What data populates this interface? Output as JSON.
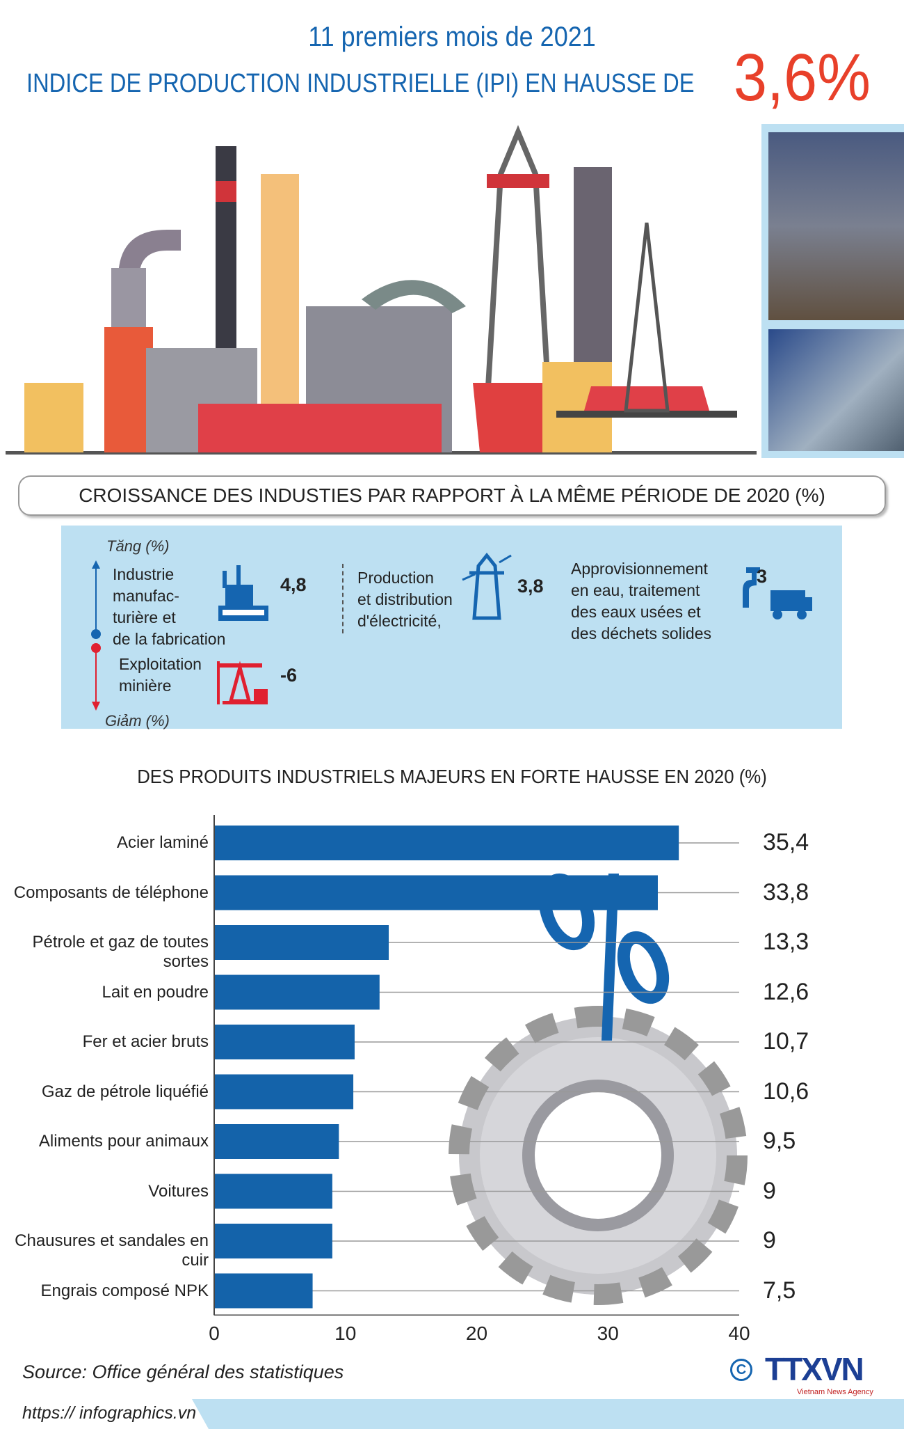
{
  "header": {
    "subtitle": "11 premiers mois de 2021",
    "title": "INDICE DE PRODUCTION INDUSTRIELLE (IPI) EN HAUSSE DE",
    "highlight": "3,6%"
  },
  "banner": "CROISSANCE DES INDUSTIES PAR RAPPORT À LA MÊME PÉRIODE DE 2020 (%)",
  "growth": {
    "up_label": "Tăng (%)",
    "down_label": "Giảm (%)",
    "items": [
      {
        "lines": [
          "Industrie",
          "manufac-",
          "turière et",
          "de la fabrication"
        ],
        "value": "4,8",
        "icon": "factory-icon"
      },
      {
        "lines": [
          "Exploitation",
          "minière"
        ],
        "value": "-6",
        "icon": "oil-pump-icon"
      },
      {
        "lines": [
          "Production",
          "et distribution",
          "d'électricité,"
        ],
        "value": "3,8",
        "icon": "power-tower-icon"
      },
      {
        "lines": [
          "Approvisionnement",
          "en eau, traitement",
          "des eaux usées et",
          "des déchets solides"
        ],
        "value": "3",
        "icon": "water-truck-icon"
      }
    ],
    "colors": {
      "up": "#1565b0",
      "down": "#e02030",
      "panel": "#bde0f2"
    }
  },
  "chart_data": {
    "type": "bar",
    "orientation": "horizontal",
    "title": "DES PRODUITS INDUSTRIELS MAJEURS EN FORTE HAUSSE EN 2020 (%)",
    "categories": [
      "Acier laminé",
      "Composants de téléphone",
      "Pétrole et gaz de toutes sortes",
      "Lait en poudre",
      "Fer et acier bruts",
      "Gaz de pétrole liquéfié",
      "Aliments pour animaux",
      "Voitures",
      "Chausures et sandales en cuir",
      "Engrais composé NPK"
    ],
    "values": [
      35.4,
      33.8,
      13.3,
      12.6,
      10.7,
      10.6,
      9.5,
      9,
      9,
      7.5
    ],
    "value_labels": [
      "35,4",
      "33,8",
      "13,3",
      "12,6",
      "10,7",
      "10,6",
      "9,5",
      "9",
      "9",
      "7,5"
    ],
    "xlim": [
      0,
      40
    ],
    "xticks": [
      "0",
      "10",
      "20",
      "30",
      "40"
    ],
    "bar_color": "#1463aa",
    "grid": "horizontal lines per row"
  },
  "footer": {
    "source": "Source: Office général des statistiques",
    "url": "https:// infographics.vn",
    "logo": "TTXVN",
    "logo_sub": "Vietnam News Agency"
  }
}
